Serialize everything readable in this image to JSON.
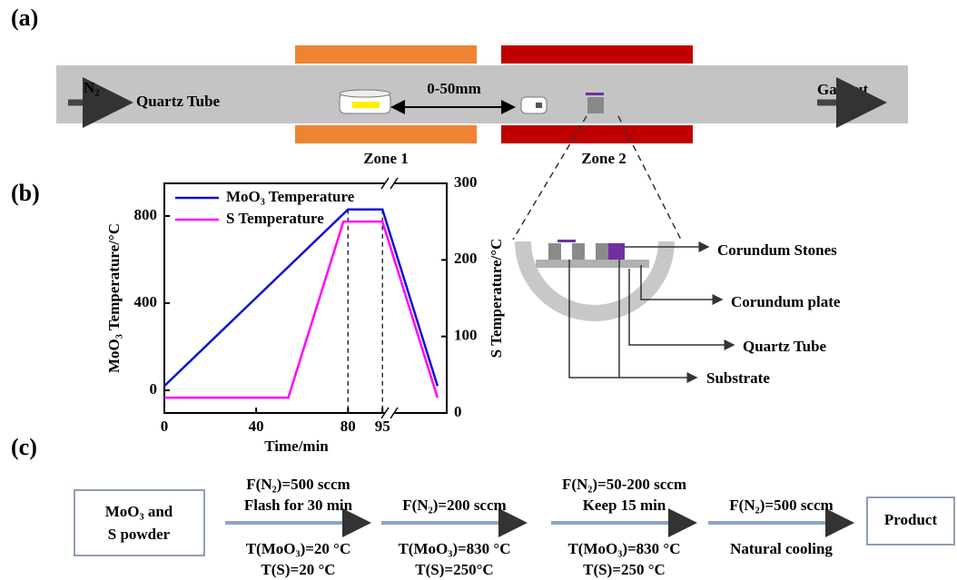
{
  "panel_a": {
    "label": "(a)",
    "gas_in": "N₂",
    "tube": "Quartz Tube",
    "distance": "0-50mm",
    "gas_out": "Gas out",
    "zone1": "Zone 1",
    "zone2": "Zone 2"
  },
  "panel_b": {
    "label": "(b)",
    "inset": {
      "stones": "Corundum Stones",
      "plate": "Corundum plate",
      "tube": "Quartz Tube",
      "substrate": "Substrate"
    }
  },
  "chart_data": {
    "type": "line",
    "xlabel": "Time/min",
    "ylabel": "MoO₃ Temperature/°C",
    "y2label": "S Temperature/°C",
    "xlim": [
      0,
      123
    ],
    "xticks": [
      0,
      40,
      80,
      95
    ],
    "ylim": [
      -104,
      950
    ],
    "yticks": [
      0,
      400,
      800
    ],
    "y2lim": [
      0,
      300
    ],
    "y2ticks": [
      0,
      100,
      200,
      300
    ],
    "legend": "upper left",
    "series": [
      {
        "name": "MoO₃ Temperature",
        "color": "#1010d8",
        "x": [
          0,
          80,
          95,
          119
        ],
        "values": [
          20,
          830,
          830,
          20
        ]
      },
      {
        "name": "S Temperature",
        "color": "#ff00ff",
        "axis": "y2",
        "x": [
          0,
          54,
          78,
          95,
          119
        ],
        "values": [
          20,
          20,
          250,
          250,
          20
        ]
      }
    ]
  },
  "panel_c": {
    "label": "(c)",
    "start": [
      "MoO₃ and",
      "S powder"
    ],
    "end": "Product",
    "steps": [
      {
        "above": [
          "F(N₂)=500 sccm",
          "Flash for 30 min"
        ],
        "below": [
          "T(MoO₃)=20 °C",
          "T(S)=20 °C"
        ]
      },
      {
        "above": [
          "F(N₂)=200 sccm"
        ],
        "below": [
          "T(MoO₃)=830 °C",
          "T(S)=250°C"
        ]
      },
      {
        "above": [
          "F(N₂)=50-200 sccm",
          "Keep 15 min"
        ],
        "below": [
          "T(MoO₃)=830 °C",
          "T(S)=250 °C"
        ]
      },
      {
        "above": [
          "F(N₂)=500 sccm"
        ],
        "below": [
          "Natural cooling"
        ]
      }
    ]
  }
}
